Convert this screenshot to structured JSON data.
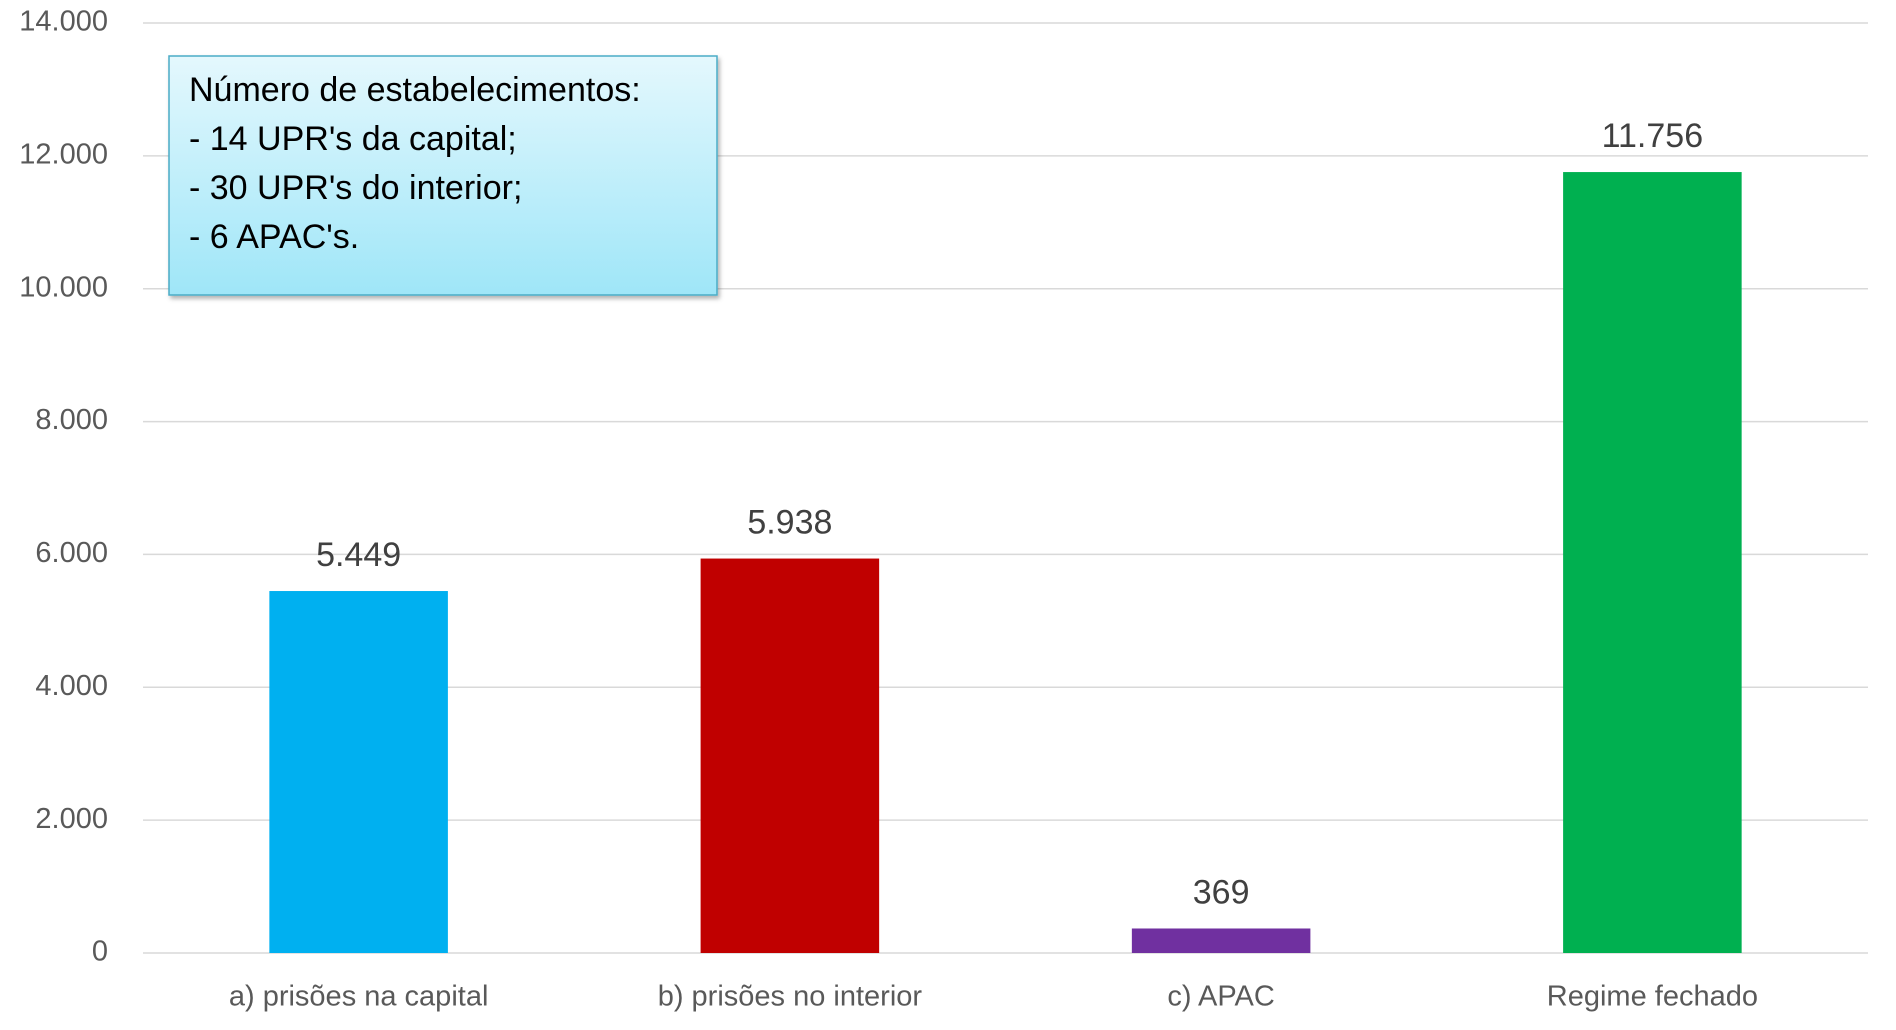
{
  "chart_data": {
    "type": "bar",
    "categories": [
      "a) prisões na capital",
      "b) prisões no interior",
      "c) APAC",
      "Regime fechado"
    ],
    "values": [
      5449,
      5938,
      369,
      11756
    ],
    "value_labels": [
      "5.449",
      "5.938",
      "369",
      "11.756"
    ],
    "colors": [
      "#00b0f0",
      "#c00000",
      "#7030a0",
      "#00b050"
    ],
    "ylim": [
      0,
      14000
    ],
    "yticks": [
      0,
      {
        "value": 2000,
        "label": "2.000"
      },
      {
        "value": 4000,
        "label": "4.000"
      },
      {
        "value": 6000,
        "label": "6.000"
      },
      {
        "value": 8000,
        "label": "8.000"
      },
      {
        "value": 10000,
        "label": "10.000"
      },
      {
        "value": 12000,
        "label": "12.000"
      },
      {
        "value": 14000,
        "label": "14.000"
      }
    ],
    "grid": true,
    "annotation": [
      "Número de estabelecimentos:",
      "- 14 UPR's da capital;",
      "- 30 UPR's do interior;",
      "- 6 APAC's."
    ]
  }
}
